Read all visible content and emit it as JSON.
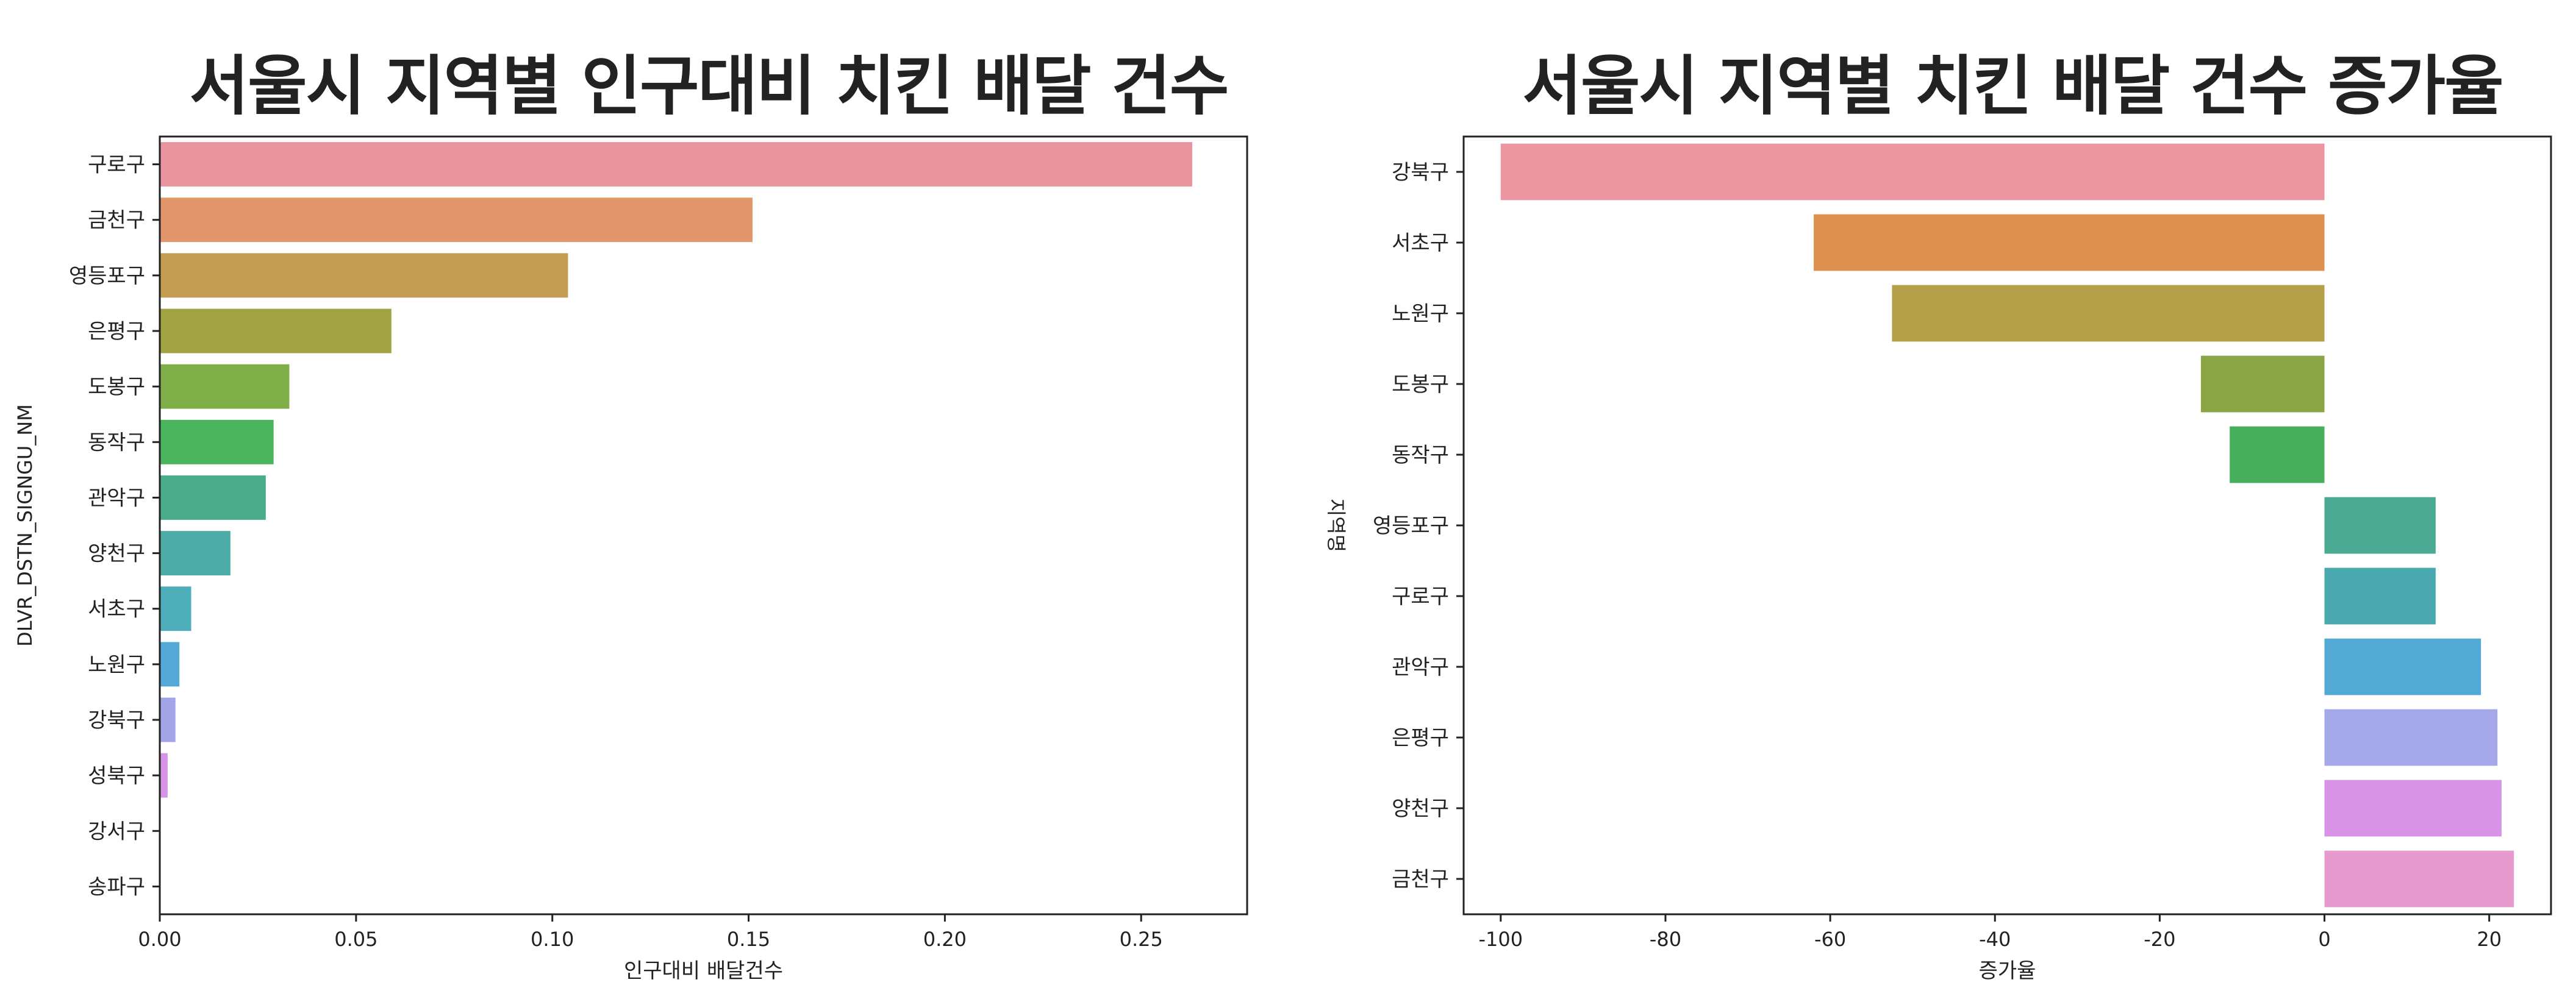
{
  "chart_data": [
    {
      "type": "bar",
      "orientation": "horizontal",
      "title": "서울시 지역별 인구대비 치킨 배달 건수",
      "xlabel": "인구대비 배달건수",
      "ylabel": "DLVR_DSTN_SIGNGU_NM",
      "xlim": [
        0,
        0.277
      ],
      "xticks": [
        0.0,
        0.05,
        0.1,
        0.15,
        0.2,
        0.25
      ],
      "xtick_labels": [
        "0.00",
        "0.05",
        "0.10",
        "0.15",
        "0.20",
        "0.25"
      ],
      "grid": false,
      "categories": [
        "구로구",
        "금천구",
        "영등포구",
        "은평구",
        "도봉구",
        "동작구",
        "관악구",
        "양천구",
        "서초구",
        "노원구",
        "강북구",
        "성북구",
        "강서구",
        "송파구"
      ],
      "values": [
        0.263,
        0.151,
        0.104,
        0.059,
        0.033,
        0.029,
        0.027,
        0.018,
        0.008,
        0.005,
        0.004,
        0.002,
        0.0,
        0.0
      ],
      "colors": [
        "#e8949f",
        "#e3966b",
        "#c29d51",
        "#a2a343",
        "#7fad47",
        "#4bb55e",
        "#4bac8b",
        "#4eaca6",
        "#4eaeba",
        "#55a9d6",
        "#a3a5ea",
        "#d793e3",
        "#e79ad3",
        "#e897b9"
      ]
    },
    {
      "type": "bar",
      "orientation": "horizontal",
      "title": "서울시 지역별 치킨 배달 건수 증가율",
      "xlabel": "증가율",
      "ylabel": "지역명",
      "xlim": [
        -104.5,
        27.5
      ],
      "xticks": [
        -100,
        -80,
        -60,
        -40,
        -20,
        0,
        20
      ],
      "xtick_labels": [
        "-100",
        "-80",
        "-60",
        "-40",
        "-20",
        "0",
        "20"
      ],
      "grid": false,
      "categories": [
        "강북구",
        "서초구",
        "노원구",
        "도봉구",
        "동작구",
        "영등포구",
        "구로구",
        "관악구",
        "은평구",
        "양천구",
        "금천구"
      ],
      "values": [
        -100,
        -62,
        -52.5,
        -15,
        -11.5,
        13.5,
        13.5,
        19,
        21,
        21.5,
        23
      ],
      "colors": [
        "#eb95a1",
        "#dd914e",
        "#b59f48",
        "#89a545",
        "#47ae5b",
        "#4aab92",
        "#4aa9ae",
        "#52aad4",
        "#a4a8e8",
        "#d993e6",
        "#e79ace"
      ]
    }
  ]
}
